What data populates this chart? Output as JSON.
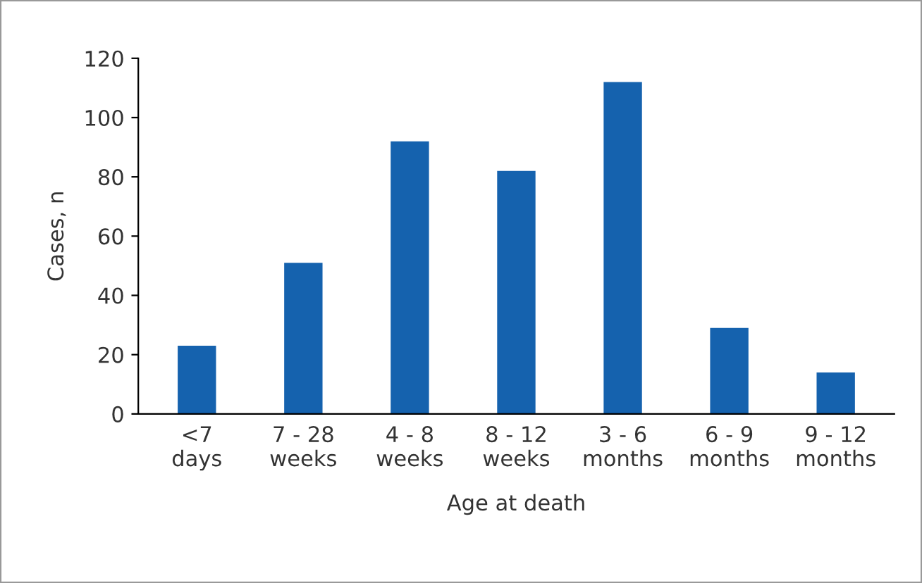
{
  "chart_data": {
    "type": "bar",
    "xlabel": "Age at death",
    "ylabel": "Cases, n",
    "categories": [
      "<7\ndays",
      "7 - 28\nweeks",
      "4 - 8\nweeks",
      "8 - 12\nweeks",
      "3 - 6\nmonths",
      "6 - 9\nmonths",
      "9 - 12\nmonths"
    ],
    "values": [
      23,
      51,
      92,
      82,
      112,
      29,
      14
    ],
    "color": "#1562ae",
    "ylim": [
      0,
      120
    ],
    "yticks": [
      0,
      20,
      40,
      60,
      80,
      100,
      120
    ],
    "grid": false,
    "legend": false
  }
}
